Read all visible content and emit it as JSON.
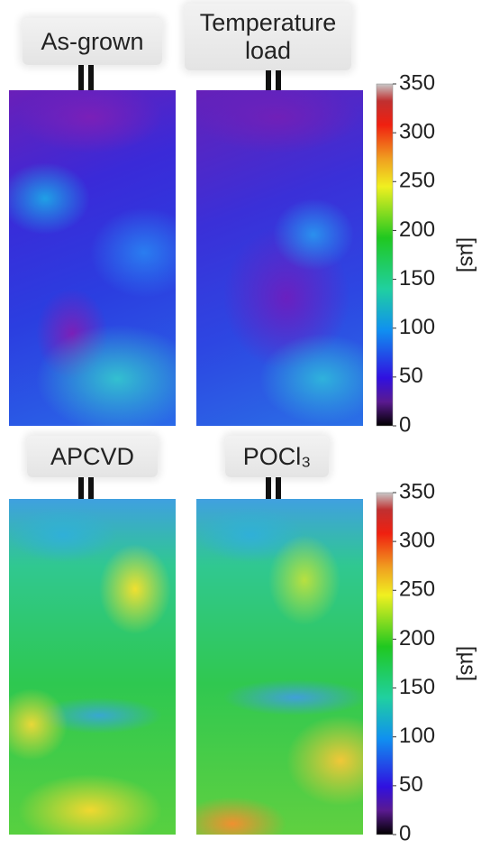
{
  "panels": [
    {
      "label": "As-grown"
    },
    {
      "label": "Temperature load"
    },
    {
      "label": "APCVD"
    },
    {
      "label": "POCl₃"
    }
  ],
  "colorbars": [
    {
      "label": "[µs]",
      "range": [
        0,
        350
      ],
      "ticks": [
        0,
        50,
        100,
        150,
        200,
        250,
        300,
        350
      ]
    },
    {
      "label": "[µs]",
      "range": [
        0,
        350
      ],
      "ticks": [
        0,
        50,
        100,
        150,
        200,
        250,
        300,
        350
      ]
    }
  ]
}
